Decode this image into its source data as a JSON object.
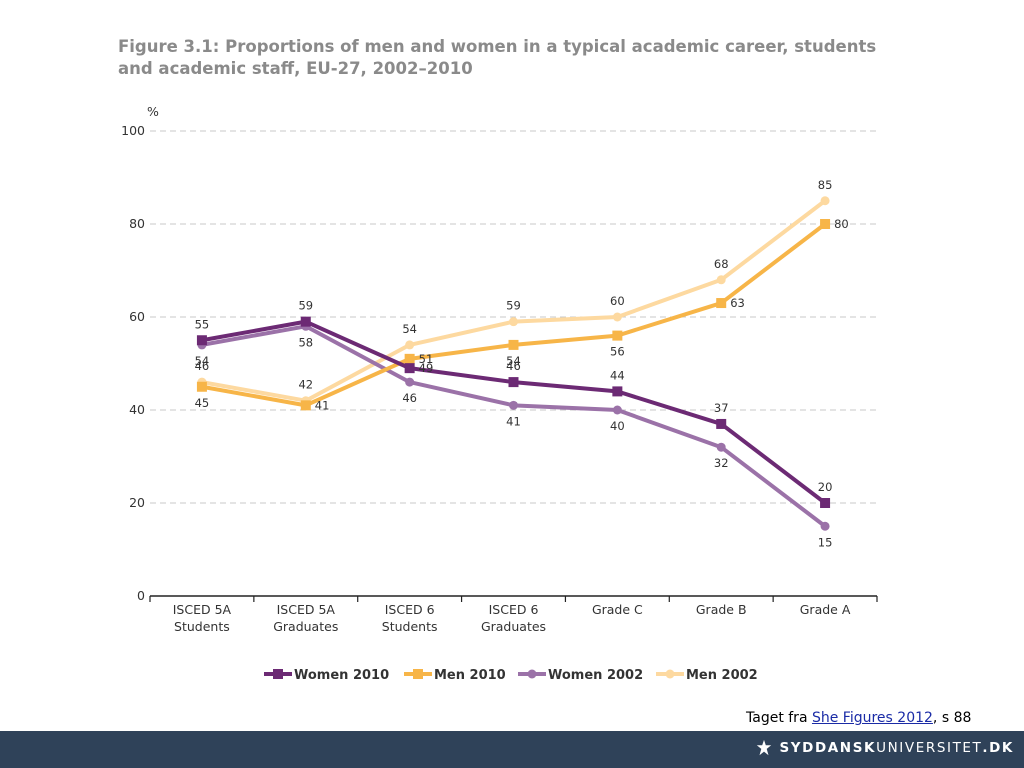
{
  "figure": {
    "label": "Figure 3.1:",
    "caption": "Proportions of men and women in a typical academic career, students and academic staff, EU-27, 2002–2010"
  },
  "source": {
    "prefix": "Taget fra ",
    "link_text": "She Figures 2012",
    "suffix": ", s 88"
  },
  "footer": {
    "logo_text": "SYDDANSKUNIVERSITET.DK",
    "logo_bold": "SYDDANSK",
    "logo_light": "UNIVERSITET",
    "logo_tld": ".DK"
  },
  "chart_data": {
    "type": "line",
    "title": "",
    "ylabel": "%",
    "xlabel": "",
    "ylim": [
      0,
      100
    ],
    "yticks": [
      0,
      20,
      40,
      60,
      80,
      100
    ],
    "grid": true,
    "legend_position": "bottom",
    "categories": [
      [
        "ISCED 5A",
        "Students"
      ],
      [
        "ISCED 5A",
        "Graduates"
      ],
      [
        "ISCED 6",
        "Students"
      ],
      [
        "ISCED 6",
        "Graduates"
      ],
      [
        "Grade C"
      ],
      [
        "Grade B"
      ],
      [
        "Grade A"
      ]
    ],
    "series": [
      {
        "name": "Men 2002",
        "values": [
          46,
          42,
          54,
          59,
          60,
          68,
          85
        ],
        "color": "#fdd9a0",
        "marker": "circle",
        "label_pos": [
          "above",
          "above",
          "above",
          "above",
          "above",
          "above",
          "above"
        ]
      },
      {
        "name": "Women 2002",
        "values": [
          54,
          58,
          46,
          41,
          40,
          32,
          15
        ],
        "color": "#9b72a8",
        "marker": "circle",
        "label_pos": [
          "below",
          "below",
          "below",
          "below",
          "below",
          "below",
          "below"
        ]
      },
      {
        "name": "Men 2010",
        "values": [
          45,
          41,
          51,
          54,
          56,
          63,
          80
        ],
        "color": "#f7b548",
        "marker": "square",
        "label_pos": [
          "below",
          "right",
          "right",
          "below",
          "below",
          "right",
          "right"
        ]
      },
      {
        "name": "Women 2010",
        "values": [
          55,
          59,
          49,
          46,
          44,
          37,
          20
        ],
        "color": "#6c2a74",
        "marker": "square",
        "label_pos": [
          "above",
          "above",
          "right",
          "above",
          "above",
          "above",
          "above"
        ]
      }
    ],
    "legend_order": [
      "Women 2010",
      "Men 2010",
      "Women 2002",
      "Men 2002"
    ]
  }
}
